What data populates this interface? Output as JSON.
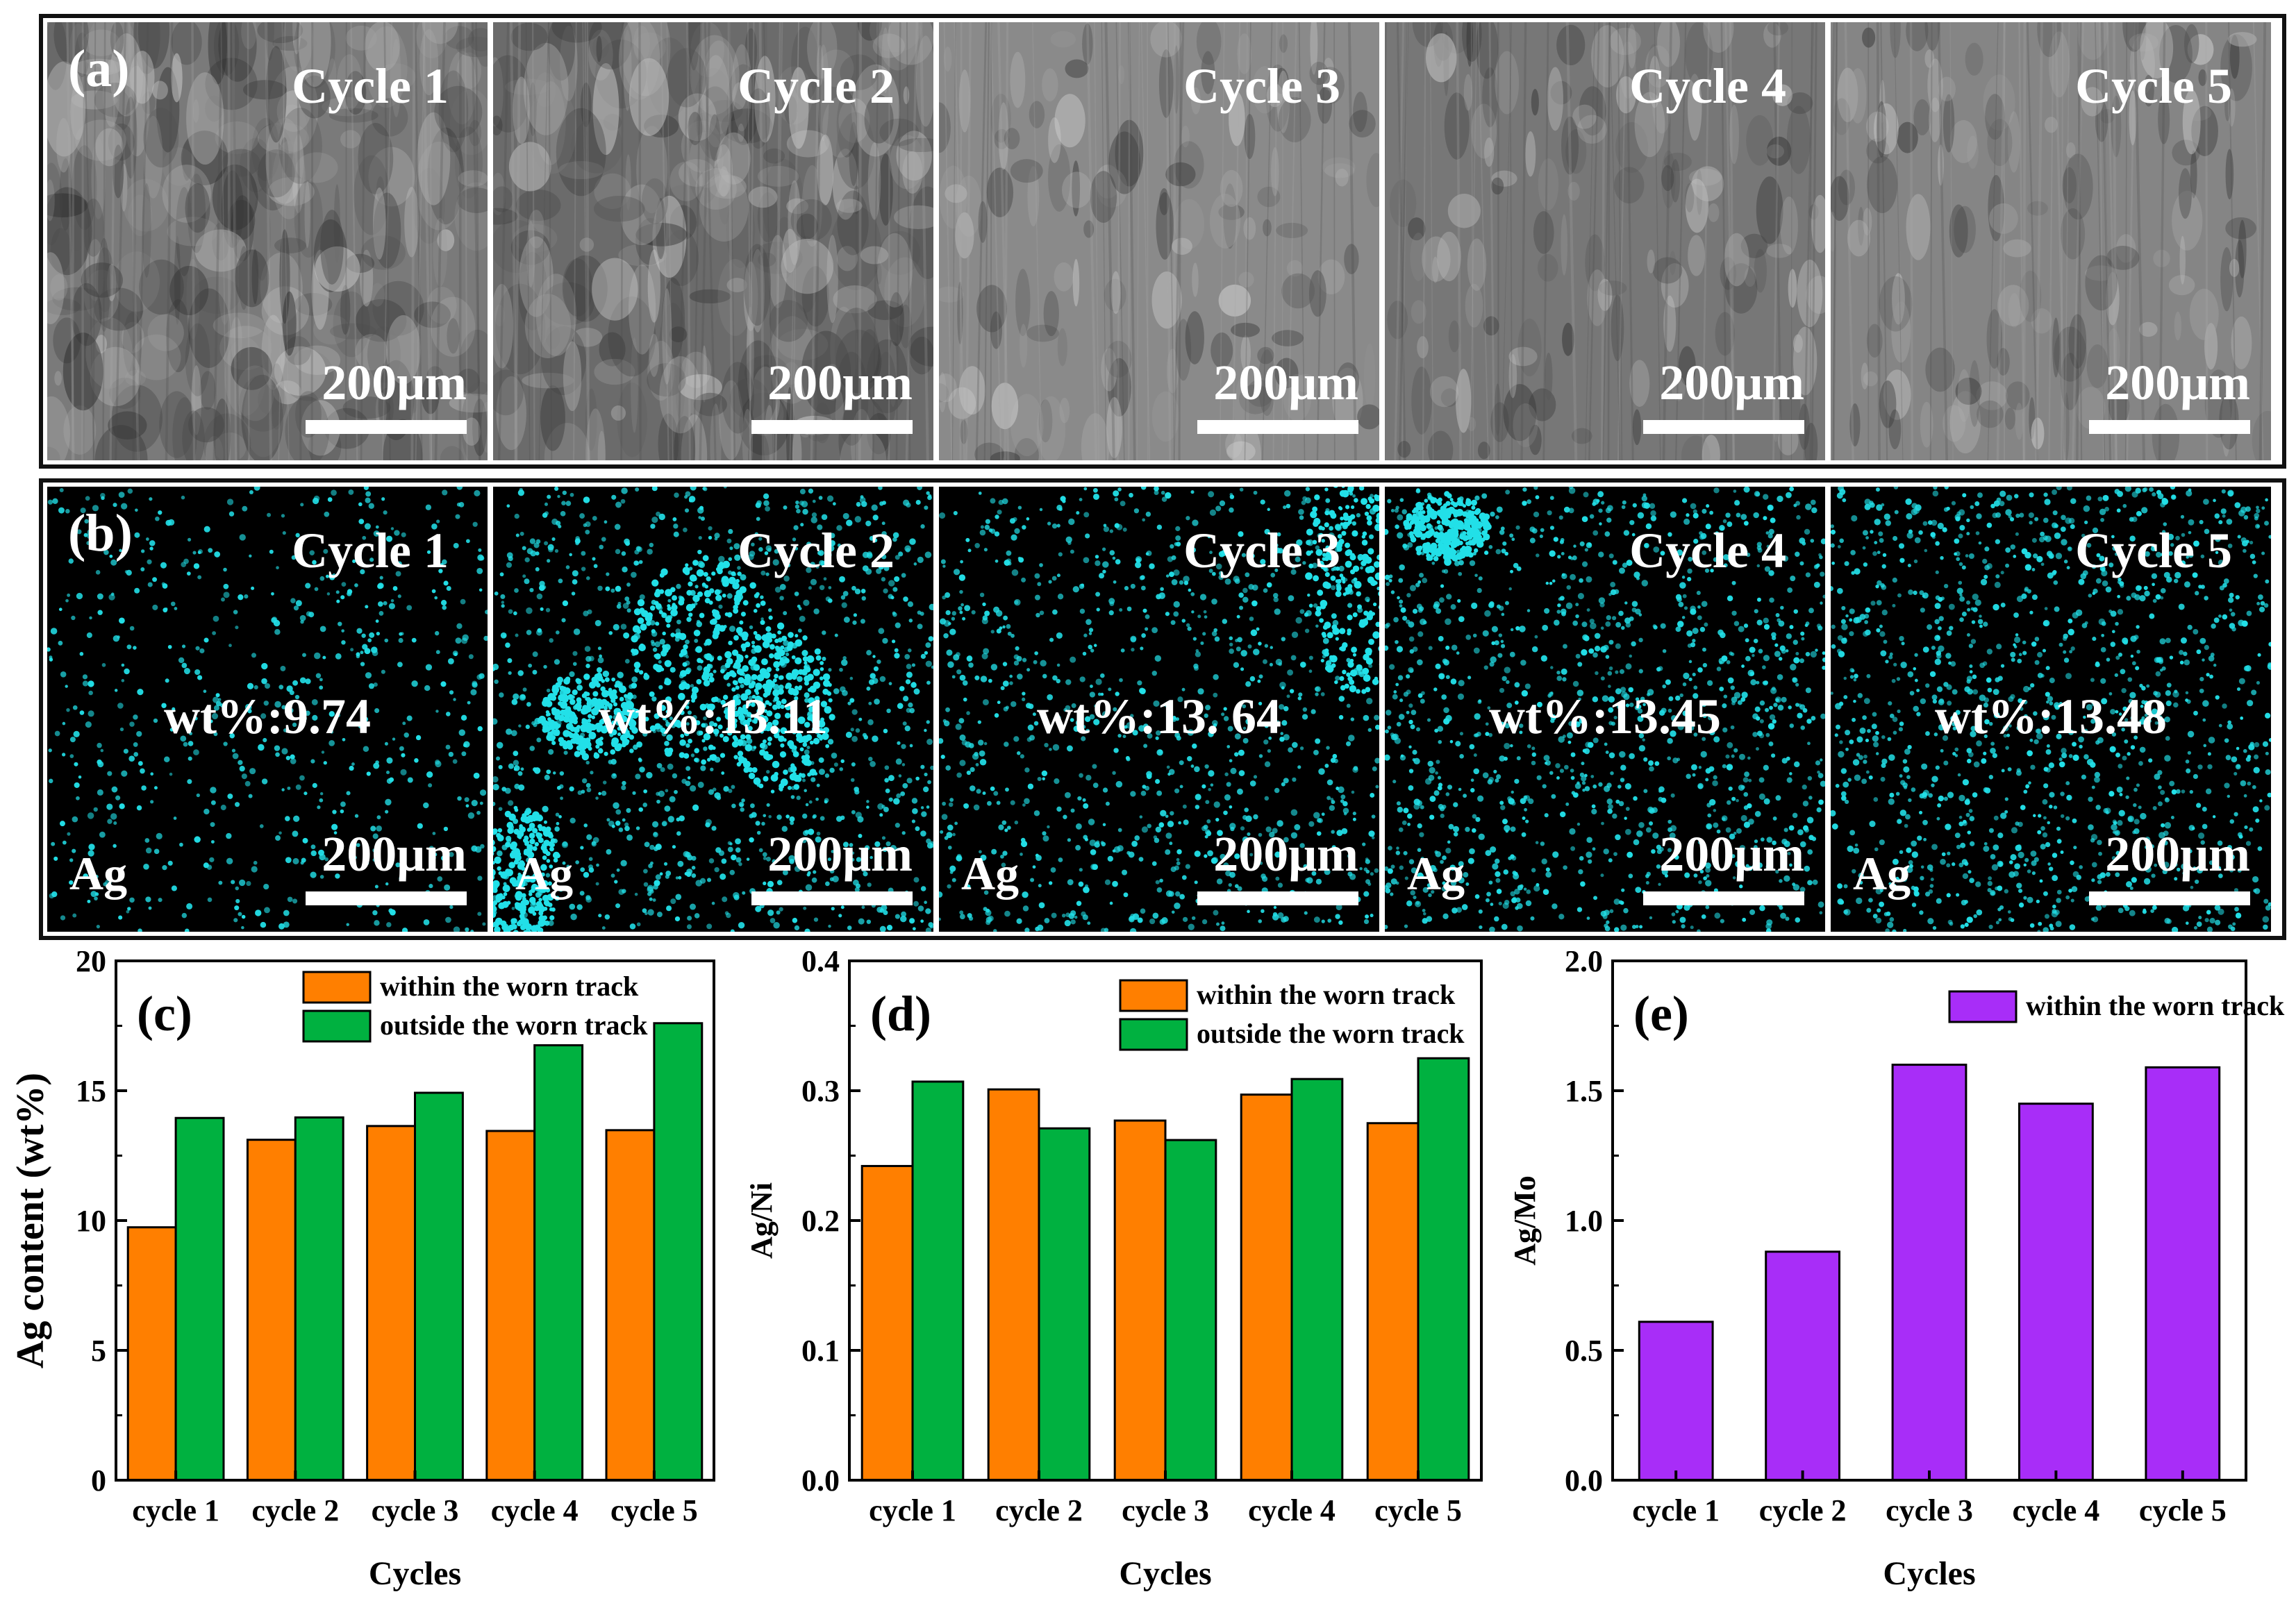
{
  "panel_a": {
    "label": "(a)",
    "panels": [
      {
        "cycle": "Cycle 1",
        "scale": "200μm"
      },
      {
        "cycle": "Cycle 2",
        "scale": "200μm"
      },
      {
        "cycle": "Cycle 3",
        "scale": "200μm"
      },
      {
        "cycle": "Cycle 4",
        "scale": "200μm"
      },
      {
        "cycle": "Cycle 5",
        "scale": "200μm"
      }
    ]
  },
  "panel_b": {
    "label": "(b)",
    "panels": [
      {
        "cycle": "Cycle 1",
        "wt": "wt%:9.74",
        "element": "Ag",
        "scale": "200μm"
      },
      {
        "cycle": "Cycle 2",
        "wt": "wt%:13.11",
        "element": "Ag",
        "scale": "200μm"
      },
      {
        "cycle": "Cycle 3",
        "wt": "wt%:13. 64",
        "element": "Ag",
        "scale": "200μm"
      },
      {
        "cycle": "Cycle 4",
        "wt": "wt%:13.45",
        "element": "Ag",
        "scale": "200μm"
      },
      {
        "cycle": "Cycle 5",
        "wt": "wt%:13.48",
        "element": "Ag",
        "scale": "200μm"
      }
    ]
  },
  "colors": {
    "within": "#ff7f00",
    "outside": "#00b140",
    "purple": "#a82df8",
    "ag_map": "#22e0e8",
    "frame": "#111111"
  },
  "chart_data": [
    {
      "type": "bar",
      "panel_label": "(c)",
      "categories": [
        "cycle 1",
        "cycle 2",
        "cycle 3",
        "cycle 4",
        "cycle 5"
      ],
      "series": [
        {
          "name": "within the worn track",
          "values": [
            9.74,
            13.11,
            13.64,
            13.45,
            13.48
          ]
        },
        {
          "name": "outside the worn track",
          "values": [
            13.95,
            13.97,
            14.92,
            16.75,
            17.6
          ]
        }
      ],
      "xlabel": "Cycles",
      "ylabel": "Ag content (wt%)",
      "ylim": [
        0,
        20
      ],
      "yticks": [
        0,
        5,
        10,
        15,
        20
      ],
      "yticklabels": [
        "0",
        "5",
        "10",
        "15",
        "20"
      ],
      "legend": "top-right",
      "grid": false
    },
    {
      "type": "bar",
      "panel_label": "(d)",
      "categories": [
        "cycle 1",
        "cycle 2",
        "cycle 3",
        "cycle 4",
        "cycle 5"
      ],
      "series": [
        {
          "name": "within the worn track",
          "values": [
            0.242,
            0.301,
            0.277,
            0.297,
            0.275
          ]
        },
        {
          "name": "outside the worn track",
          "values": [
            0.307,
            0.271,
            0.262,
            0.309,
            0.325
          ]
        }
      ],
      "xlabel": "Cycles",
      "ylabel": "Ag/Ni",
      "ylim": [
        0,
        0.4
      ],
      "yticks": [
        0,
        0.1,
        0.2,
        0.3,
        0.4
      ],
      "yticklabels": [
        "0.0",
        "0.1",
        "0.2",
        "0.3",
        "0.4"
      ],
      "legend": "top-right",
      "grid": false
    },
    {
      "type": "bar",
      "panel_label": "(e)",
      "categories": [
        "cycle 1",
        "cycle 2",
        "cycle 3",
        "cycle 4",
        "cycle 5"
      ],
      "series": [
        {
          "name": "within the worn track",
          "values": [
            0.61,
            0.88,
            1.6,
            1.45,
            1.59
          ]
        }
      ],
      "xlabel": "Cycles",
      "ylabel": "Ag/Mo",
      "ylim": [
        0,
        2.0
      ],
      "yticks": [
        0,
        0.5,
        1.0,
        1.5,
        2.0
      ],
      "yticklabels": [
        "0.0",
        "0.5",
        "1.0",
        "1.5",
        "2.0"
      ],
      "legend": "top-right",
      "grid": false
    }
  ]
}
